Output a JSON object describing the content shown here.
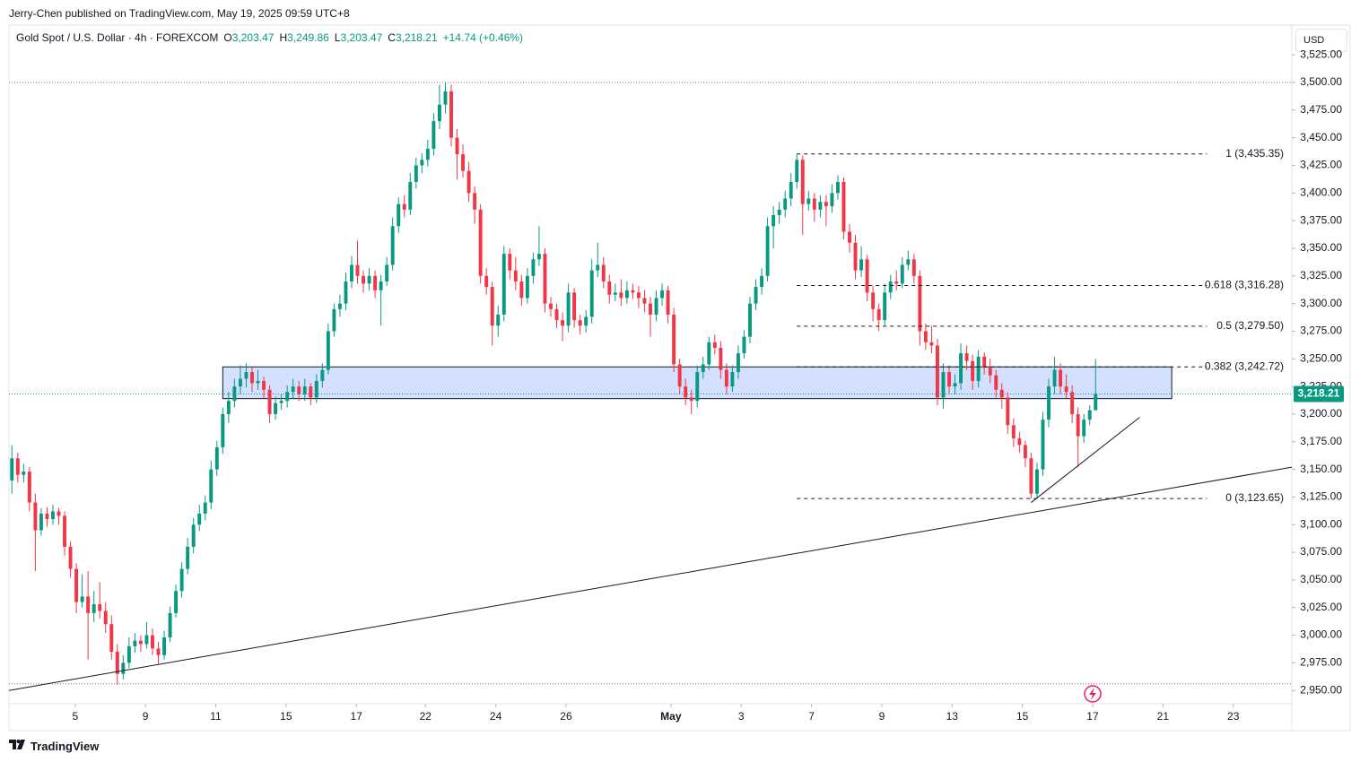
{
  "header": {
    "published": "Jerry-Chen published on TradingView.com, May 19, 2025 09:59 UTC+8",
    "brand": "TradingView",
    "currency": "USD"
  },
  "legend": {
    "symbol": "Gold Spot / U.S. Dollar · 4h · FOREXCOM",
    "fields": [
      {
        "key": "O",
        "value": "3,203.47"
      },
      {
        "key": "H",
        "value": "3,249.86"
      },
      {
        "key": "L",
        "value": "3,203.47"
      },
      {
        "key": "C",
        "value": "3,218.21"
      }
    ],
    "change": "+14.74 (+0.46%)"
  },
  "chart_data": {
    "type": "candlestick",
    "up_color": "#089981",
    "down_color": "#f23645",
    "xlim": [
      -0.5,
      218.5
    ],
    "ylim": [
      2938,
      3530
    ],
    "xticks": [
      {
        "value": 10.8,
        "label": "5"
      },
      {
        "value": 22.8,
        "label": "9"
      },
      {
        "value": 34.8,
        "label": "11"
      },
      {
        "value": 46.8,
        "label": "15"
      },
      {
        "value": 58.8,
        "label": "17"
      },
      {
        "value": 70.6,
        "label": "22"
      },
      {
        "value": 82.6,
        "label": "24"
      },
      {
        "value": 94.6,
        "label": "26"
      },
      {
        "value": 112.5,
        "label": "May"
      },
      {
        "value": 124.5,
        "label": "3"
      },
      {
        "value": 136.5,
        "label": "7"
      },
      {
        "value": 148.5,
        "label": "9"
      },
      {
        "value": 160.5,
        "label": "13"
      },
      {
        "value": 172.5,
        "label": "15"
      },
      {
        "value": 184.5,
        "label": "17"
      },
      {
        "value": 196.5,
        "label": "21"
      },
      {
        "value": 208.5,
        "label": "23"
      }
    ],
    "yticks": [
      {
        "value": 2950,
        "label": "2,950.00"
      },
      {
        "value": 2975,
        "label": "2,975.00"
      },
      {
        "value": 3000,
        "label": "3,000.00"
      },
      {
        "value": 3025,
        "label": "3,025.00"
      },
      {
        "value": 3050,
        "label": "3,050.00"
      },
      {
        "value": 3075,
        "label": "3,075.00"
      },
      {
        "value": 3100,
        "label": "3,100.00"
      },
      {
        "value": 3125,
        "label": "3,125.00"
      },
      {
        "value": 3150,
        "label": "3,150.00"
      },
      {
        "value": 3175,
        "label": "3,175.00"
      },
      {
        "value": 3200,
        "label": "3,200.00"
      },
      {
        "value": 3225,
        "label": "3,225.00"
      },
      {
        "value": 3250,
        "label": "3,250.00"
      },
      {
        "value": 3275,
        "label": "3,275.00"
      },
      {
        "value": 3300,
        "label": "3,300.00"
      },
      {
        "value": 3325,
        "label": "3,325.00"
      },
      {
        "value": 3350,
        "label": "3,350.00"
      },
      {
        "value": 3375,
        "label": "3,375.00"
      },
      {
        "value": 3400,
        "label": "3,400.00"
      },
      {
        "value": 3425,
        "label": "3,425.00"
      },
      {
        "value": 3450,
        "label": "3,450.00"
      },
      {
        "value": 3475,
        "label": "3,475.00"
      },
      {
        "value": 3500,
        "label": "3,500.00"
      },
      {
        "value": 3525,
        "label": "3,525.00"
      }
    ],
    "ohlc": [
      [
        3140,
        3172,
        3128,
        3160
      ],
      [
        3160,
        3165,
        3138,
        3145
      ],
      [
        3145,
        3155,
        3138,
        3148
      ],
      [
        3148,
        3152,
        3112,
        3120
      ],
      [
        3120,
        3128,
        3058,
        3095
      ],
      [
        3095,
        3115,
        3090,
        3110
      ],
      [
        3110,
        3116,
        3098,
        3105
      ],
      [
        3105,
        3118,
        3100,
        3112
      ],
      [
        3112,
        3115,
        3100,
        3108
      ],
      [
        3108,
        3112,
        3072,
        3080
      ],
      [
        3080,
        3085,
        3052,
        3060
      ],
      [
        3060,
        3065,
        3020,
        3030
      ],
      [
        3030,
        3055,
        3025,
        3035
      ],
      [
        3035,
        3058,
        2978,
        3020
      ],
      [
        3020,
        3040,
        3012,
        3028
      ],
      [
        3028,
        3048,
        3015,
        3022
      ],
      [
        3022,
        3030,
        3002,
        3010
      ],
      [
        3010,
        3018,
        2978,
        2985
      ],
      [
        2985,
        2992,
        2955,
        2965
      ],
      [
        2965,
        2982,
        2960,
        2975
      ],
      [
        2975,
        2998,
        2970,
        2990
      ],
      [
        2990,
        3002,
        2984,
        2995
      ],
      [
        2995,
        3000,
        2985,
        2992
      ],
      [
        2992,
        3012,
        2988,
        3000
      ],
      [
        3000,
        3006,
        2982,
        2988
      ],
      [
        2988,
        2994,
        2974,
        2982
      ],
      [
        2982,
        3004,
        2978,
        2998
      ],
      [
        2998,
        3026,
        2994,
        3020
      ],
      [
        3020,
        3046,
        3016,
        3040
      ],
      [
        3040,
        3066,
        3034,
        3060
      ],
      [
        3060,
        3088,
        3055,
        3080
      ],
      [
        3080,
        3106,
        3074,
        3100
      ],
      [
        3100,
        3118,
        3094,
        3110
      ],
      [
        3110,
        3126,
        3104,
        3120
      ],
      [
        3120,
        3158,
        3114,
        3150
      ],
      [
        3150,
        3176,
        3144,
        3170
      ],
      [
        3170,
        3206,
        3164,
        3200
      ],
      [
        3200,
        3220,
        3192,
        3212
      ],
      [
        3212,
        3232,
        3206,
        3225
      ],
      [
        3225,
        3244,
        3218,
        3232
      ],
      [
        3232,
        3246,
        3224,
        3238
      ],
      [
        3238,
        3242,
        3220,
        3228
      ],
      [
        3228,
        3240,
        3222,
        3230
      ],
      [
        3230,
        3234,
        3214,
        3222
      ],
      [
        3222,
        3226,
        3192,
        3200
      ],
      [
        3200,
        3216,
        3195,
        3210
      ],
      [
        3210,
        3218,
        3204,
        3212
      ],
      [
        3212,
        3226,
        3206,
        3220
      ],
      [
        3220,
        3232,
        3214,
        3225
      ],
      [
        3225,
        3230,
        3212,
        3218
      ],
      [
        3218,
        3232,
        3212,
        3225
      ],
      [
        3225,
        3228,
        3208,
        3215
      ],
      [
        3215,
        3236,
        3210,
        3230
      ],
      [
        3230,
        3246,
        3224,
        3240
      ],
      [
        3240,
        3282,
        3236,
        3275
      ],
      [
        3275,
        3300,
        3270,
        3295
      ],
      [
        3295,
        3308,
        3288,
        3300
      ],
      [
        3300,
        3328,
        3294,
        3320
      ],
      [
        3320,
        3343,
        3314,
        3335
      ],
      [
        3335,
        3357,
        3318,
        3325
      ],
      [
        3325,
        3330,
        3310,
        3318
      ],
      [
        3318,
        3332,
        3312,
        3325
      ],
      [
        3325,
        3330,
        3305,
        3312
      ],
      [
        3312,
        3326,
        3280,
        3320
      ],
      [
        3320,
        3342,
        3316,
        3335
      ],
      [
        3335,
        3378,
        3330,
        3370
      ],
      [
        3370,
        3396,
        3364,
        3390
      ],
      [
        3390,
        3398,
        3378,
        3385
      ],
      [
        3385,
        3418,
        3380,
        3410
      ],
      [
        3410,
        3432,
        3404,
        3425
      ],
      [
        3425,
        3436,
        3418,
        3430
      ],
      [
        3430,
        3448,
        3424,
        3440
      ],
      [
        3440,
        3472,
        3434,
        3465
      ],
      [
        3465,
        3498,
        3458,
        3480
      ],
      [
        3480,
        3500,
        3472,
        3492
      ],
      [
        3492,
        3498,
        3442,
        3450
      ],
      [
        3450,
        3458,
        3412,
        3435
      ],
      [
        3435,
        3444,
        3414,
        3420
      ],
      [
        3420,
        3428,
        3392,
        3400
      ],
      [
        3400,
        3406,
        3372,
        3385
      ],
      [
        3385,
        3390,
        3318,
        3325
      ],
      [
        3325,
        3332,
        3308,
        3315
      ],
      [
        3315,
        3320,
        3262,
        3280
      ],
      [
        3280,
        3298,
        3270,
        3290
      ],
      [
        3290,
        3352,
        3284,
        3345
      ],
      [
        3345,
        3350,
        3322,
        3330
      ],
      [
        3330,
        3342,
        3312,
        3320
      ],
      [
        3320,
        3326,
        3298,
        3305
      ],
      [
        3305,
        3332,
        3300,
        3325
      ],
      [
        3325,
        3346,
        3318,
        3340
      ],
      [
        3340,
        3370,
        3334,
        3345
      ],
      [
        3345,
        3350,
        3292,
        3300
      ],
      [
        3300,
        3306,
        3288,
        3295
      ],
      [
        3295,
        3300,
        3278,
        3285
      ],
      [
        3285,
        3292,
        3266,
        3280
      ],
      [
        3280,
        3318,
        3274,
        3310
      ],
      [
        3310,
        3314,
        3278,
        3285
      ],
      [
        3285,
        3290,
        3272,
        3280
      ],
      [
        3280,
        3294,
        3274,
        3288
      ],
      [
        3288,
        3340,
        3282,
        3330
      ],
      [
        3330,
        3355,
        3324,
        3335
      ],
      [
        3335,
        3342,
        3314,
        3320
      ],
      [
        3320,
        3326,
        3300,
        3308
      ],
      [
        3308,
        3318,
        3302,
        3310
      ],
      [
        3310,
        3322,
        3298,
        3305
      ],
      [
        3305,
        3320,
        3300,
        3312
      ],
      [
        3312,
        3318,
        3304,
        3310
      ],
      [
        3310,
        3316,
        3296,
        3305
      ],
      [
        3305,
        3312,
        3292,
        3300
      ],
      [
        3300,
        3306,
        3270,
        3290
      ],
      [
        3290,
        3312,
        3284,
        3305
      ],
      [
        3305,
        3318,
        3298,
        3312
      ],
      [
        3312,
        3316,
        3282,
        3290
      ],
      [
        3290,
        3296,
        3238,
        3245
      ],
      [
        3245,
        3250,
        3218,
        3225
      ],
      [
        3225,
        3232,
        3208,
        3215
      ],
      [
        3215,
        3222,
        3200,
        3212
      ],
      [
        3212,
        3244,
        3206,
        3238
      ],
      [
        3238,
        3252,
        3232,
        3245
      ],
      [
        3245,
        3270,
        3240,
        3265
      ],
      [
        3265,
        3272,
        3254,
        3260
      ],
      [
        3260,
        3266,
        3232,
        3240
      ],
      [
        3240,
        3246,
        3218,
        3225
      ],
      [
        3225,
        3244,
        3220,
        3238
      ],
      [
        3238,
        3262,
        3232,
        3255
      ],
      [
        3255,
        3276,
        3250,
        3270
      ],
      [
        3270,
        3306,
        3264,
        3300
      ],
      [
        3300,
        3322,
        3294,
        3315
      ],
      [
        3315,
        3332,
        3308,
        3325
      ],
      [
        3325,
        3378,
        3320,
        3370
      ],
      [
        3370,
        3388,
        3350,
        3380
      ],
      [
        3380,
        3392,
        3372,
        3385
      ],
      [
        3385,
        3402,
        3378,
        3395
      ],
      [
        3395,
        3418,
        3388,
        3410
      ],
      [
        3410,
        3435.35,
        3404,
        3430
      ],
      [
        3430,
        3434,
        3362,
        3390
      ],
      [
        3390,
        3402,
        3384,
        3395
      ],
      [
        3395,
        3400,
        3374,
        3385
      ],
      [
        3385,
        3398,
        3378,
        3392
      ],
      [
        3392,
        3398,
        3370,
        3388
      ],
      [
        3388,
        3408,
        3382,
        3400
      ],
      [
        3400,
        3416,
        3394,
        3410
      ],
      [
        3410,
        3414,
        3358,
        3365
      ],
      [
        3365,
        3372,
        3346,
        3355
      ],
      [
        3355,
        3362,
        3322,
        3330
      ],
      [
        3330,
        3352,
        3324,
        3340
      ],
      [
        3340,
        3344,
        3302,
        3310
      ],
      [
        3310,
        3316,
        3284,
        3295
      ],
      [
        3295,
        3300,
        3275,
        3285
      ],
      [
        3285,
        3318,
        3280,
        3310
      ],
      [
        3310,
        3326,
        3304,
        3320
      ],
      [
        3320,
        3330,
        3312,
        3318
      ],
      [
        3318,
        3342,
        3314,
        3335
      ],
      [
        3335,
        3348,
        3330,
        3340
      ],
      [
        3340,
        3345,
        3318,
        3325
      ],
      [
        3325,
        3330,
        3262,
        3275
      ],
      [
        3275,
        3282,
        3258,
        3265
      ],
      [
        3265,
        3280,
        3255,
        3262
      ],
      [
        3262,
        3268,
        3208,
        3215
      ],
      [
        3215,
        3246,
        3205,
        3238
      ],
      [
        3238,
        3244,
        3218,
        3225
      ],
      [
        3225,
        3236,
        3218,
        3228
      ],
      [
        3228,
        3264,
        3222,
        3255
      ],
      [
        3255,
        3262,
        3240,
        3248
      ],
      [
        3248,
        3254,
        3222,
        3230
      ],
      [
        3230,
        3258,
        3224,
        3252
      ],
      [
        3252,
        3256,
        3236,
        3242
      ],
      [
        3242,
        3250,
        3228,
        3235
      ],
      [
        3235,
        3240,
        3215,
        3222
      ],
      [
        3222,
        3228,
        3205,
        3215
      ],
      [
        3215,
        3220,
        3182,
        3190
      ],
      [
        3190,
        3196,
        3170,
        3178
      ],
      [
        3178,
        3184,
        3165,
        3172
      ],
      [
        3172,
        3176,
        3152,
        3160
      ],
      [
        3160,
        3165,
        3123.65,
        3128
      ],
      [
        3128,
        3156,
        3124,
        3150
      ],
      [
        3150,
        3202,
        3144,
        3195
      ],
      [
        3195,
        3232,
        3188,
        3225
      ],
      [
        3225,
        3252,
        3218,
        3240
      ],
      [
        3240,
        3246,
        3218,
        3225
      ],
      [
        3225,
        3236,
        3214,
        3220
      ],
      [
        3220,
        3226,
        3192,
        3200
      ],
      [
        3200,
        3206,
        3152,
        3180
      ],
      [
        3180,
        3200,
        3174,
        3195
      ],
      [
        3195,
        3208,
        3190,
        3203.47
      ],
      [
        3203.47,
        3249.86,
        3203.47,
        3218.21
      ]
    ],
    "zone": {
      "from": 36,
      "to": 198,
      "low": 3214,
      "high": 3242.72
    },
    "fib_range": [
      134,
      204
    ],
    "fib_levels": [
      {
        "value": 3435.35,
        "label": "1 (3,435.35)"
      },
      {
        "value": 3316.28,
        "label": "0.618 (3,316.28)"
      },
      {
        "value": 3279.5,
        "label": "0.5 (3,279.50)"
      },
      {
        "value": 3242.72,
        "label": "0.382 (3,242.72)"
      },
      {
        "value": 3123.65,
        "label": "0 (3,123.65)"
      }
    ],
    "trendlines": [
      {
        "x": [
          -0.5,
          218.5
        ],
        "y": [
          2950,
          3152
        ]
      },
      {
        "x": [
          174,
          192.5
        ],
        "y": [
          3120,
          3197
        ]
      }
    ],
    "range_lines": [
      3500,
      2956
    ],
    "last_price": {
      "value": 3218.21,
      "label": "3,218.21"
    }
  }
}
